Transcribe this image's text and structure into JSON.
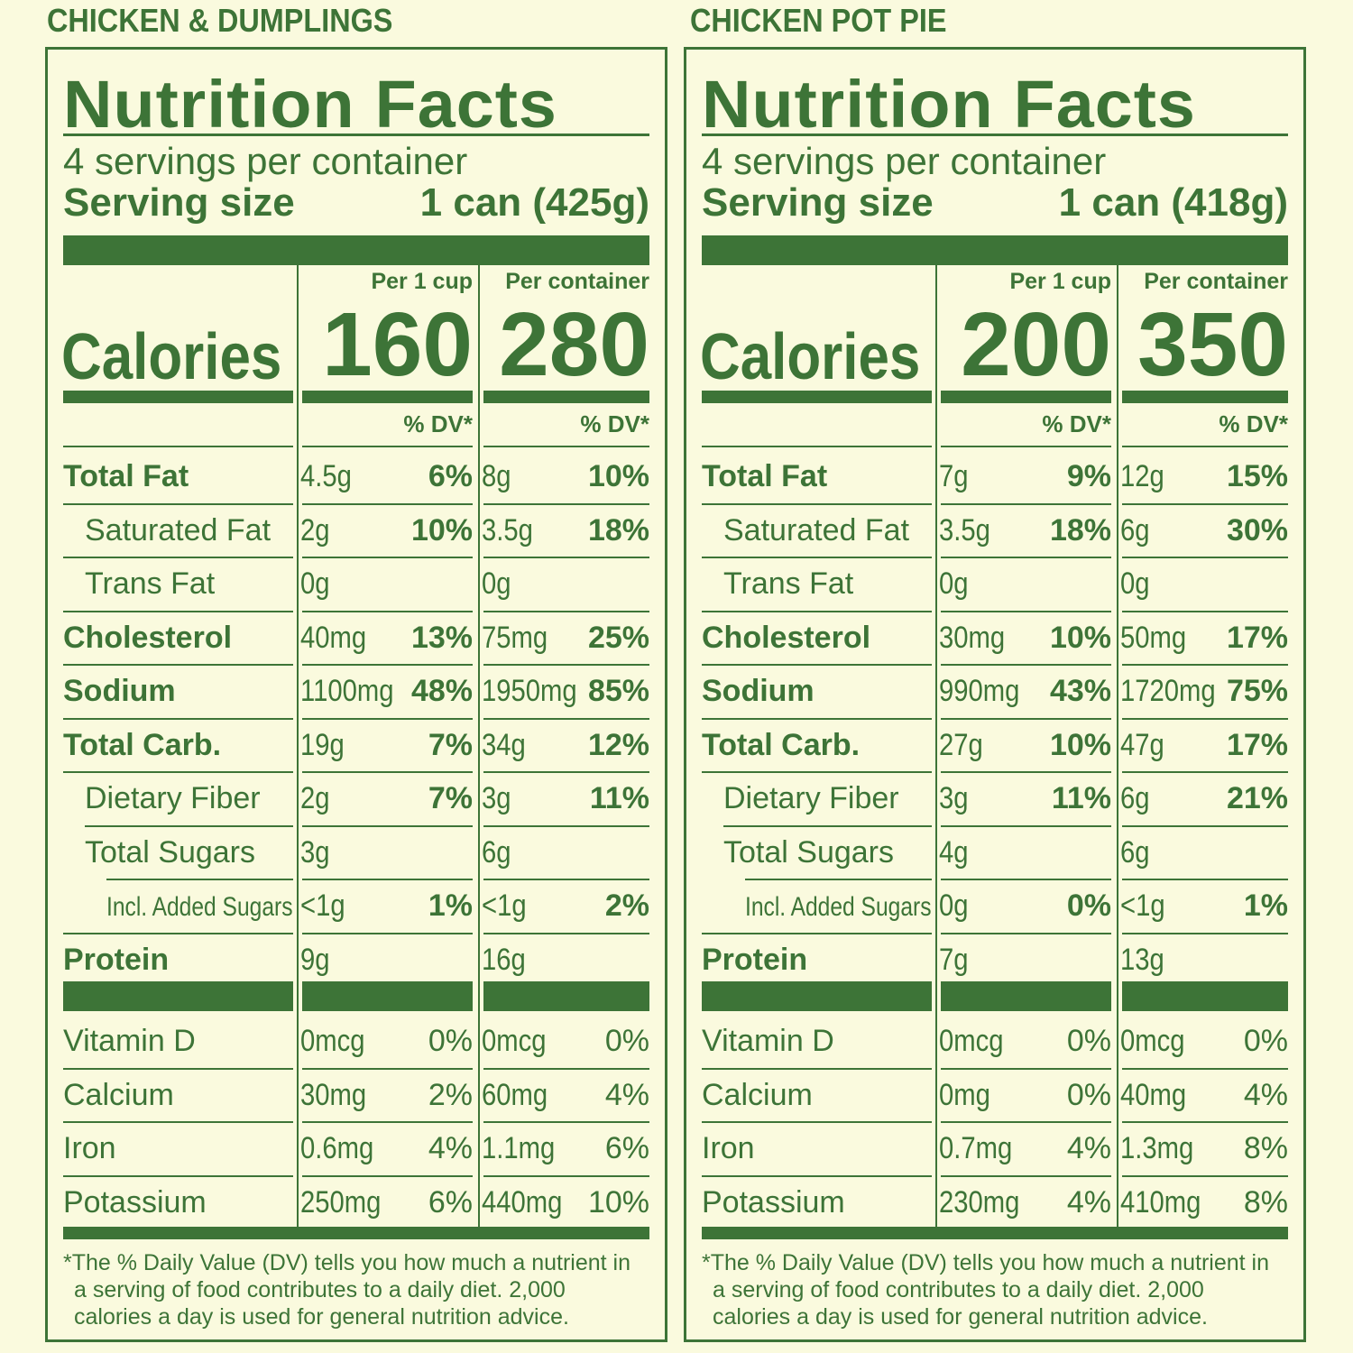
{
  "panels": [
    {
      "product_title": "CHICKEN & DUMPLINGS",
      "heading": "Nutrition Facts",
      "servings_per_container": "4 servings per container",
      "serving_size_label": "Serving size",
      "serving_size_value": "1 can (425g)",
      "col1_header": "Per 1 cup",
      "col2_header": "Per container",
      "calories_label": "Calories",
      "calories_col1": "160",
      "calories_col2": "280",
      "dv_header": "% DV*",
      "nutrients": [
        {
          "label": "Total Fat",
          "c1_amt": "4.5g",
          "c1_dv": "6%",
          "c2_amt": "8g",
          "c2_dv": "10%"
        },
        {
          "label": "Saturated Fat",
          "c1_amt": "2g",
          "c1_dv": "10%",
          "c2_amt": "3.5g",
          "c2_dv": "18%"
        },
        {
          "label": "Trans Fat",
          "c1_amt": "0g",
          "c1_dv": "",
          "c2_amt": "0g",
          "c2_dv": ""
        },
        {
          "label": "Cholesterol",
          "c1_amt": "40mg",
          "c1_dv": "13%",
          "c2_amt": "75mg",
          "c2_dv": "25%"
        },
        {
          "label": "Sodium",
          "c1_amt": "1100mg",
          "c1_dv": "48%",
          "c2_amt": "1950mg",
          "c2_dv": "85%"
        },
        {
          "label": "Total Carb.",
          "c1_amt": "19g",
          "c1_dv": "7%",
          "c2_amt": "34g",
          "c2_dv": "12%"
        },
        {
          "label": "Dietary Fiber",
          "c1_amt": "2g",
          "c1_dv": "7%",
          "c2_amt": "3g",
          "c2_dv": "11%"
        },
        {
          "label": "Total Sugars",
          "c1_amt": "3g",
          "c1_dv": "",
          "c2_amt": "6g",
          "c2_dv": ""
        },
        {
          "label": "Incl. Added Sugars",
          "c1_amt": "<1g",
          "c1_dv": "1%",
          "c2_amt": "<1g",
          "c2_dv": "2%"
        },
        {
          "label": "Protein",
          "c1_amt": "9g",
          "c1_dv": "",
          "c2_amt": "16g",
          "c2_dv": ""
        }
      ],
      "vitamins": [
        {
          "label": "Vitamin D",
          "c1_amt": "0mcg",
          "c1_dv": "0%",
          "c2_amt": "0mcg",
          "c2_dv": "0%"
        },
        {
          "label": "Calcium",
          "c1_amt": "30mg",
          "c1_dv": "2%",
          "c2_amt": "60mg",
          "c2_dv": "4%"
        },
        {
          "label": "Iron",
          "c1_amt": "0.6mg",
          "c1_dv": "4%",
          "c2_amt": "1.1mg",
          "c2_dv": "6%"
        },
        {
          "label": "Potassium",
          "c1_amt": "250mg",
          "c1_dv": "6%",
          "c2_amt": "440mg",
          "c2_dv": "10%"
        }
      ],
      "footnote_lines": [
        "*The % Daily Value (DV) tells you how much a nutrient in",
        "a serving of food contributes to a daily diet. 2,000",
        "calories a day is used for general nutrition advice."
      ]
    },
    {
      "product_title": "CHICKEN POT PIE",
      "heading": "Nutrition Facts",
      "servings_per_container": "4 servings per container",
      "serving_size_label": "Serving size",
      "serving_size_value": "1 can (418g)",
      "col1_header": "Per 1 cup",
      "col2_header": "Per container",
      "calories_label": "Calories",
      "calories_col1": "200",
      "calories_col2": "350",
      "dv_header": "% DV*",
      "nutrients": [
        {
          "label": "Total Fat",
          "c1_amt": "7g",
          "c1_dv": "9%",
          "c2_amt": "12g",
          "c2_dv": "15%"
        },
        {
          "label": "Saturated Fat",
          "c1_amt": "3.5g",
          "c1_dv": "18%",
          "c2_amt": "6g",
          "c2_dv": "30%"
        },
        {
          "label": "Trans Fat",
          "c1_amt": "0g",
          "c1_dv": "",
          "c2_amt": "0g",
          "c2_dv": ""
        },
        {
          "label": "Cholesterol",
          "c1_amt": "30mg",
          "c1_dv": "10%",
          "c2_amt": "50mg",
          "c2_dv": "17%"
        },
        {
          "label": "Sodium",
          "c1_amt": "990mg",
          "c1_dv": "43%",
          "c2_amt": "1720mg",
          "c2_dv": "75%"
        },
        {
          "label": "Total Carb.",
          "c1_amt": "27g",
          "c1_dv": "10%",
          "c2_amt": "47g",
          "c2_dv": "17%"
        },
        {
          "label": "Dietary Fiber",
          "c1_amt": "3g",
          "c1_dv": "11%",
          "c2_amt": "6g",
          "c2_dv": "21%"
        },
        {
          "label": "Total Sugars",
          "c1_amt": "4g",
          "c1_dv": "",
          "c2_amt": "6g",
          "c2_dv": ""
        },
        {
          "label": "Incl. Added Sugars",
          "c1_amt": "0g",
          "c1_dv": "0%",
          "c2_amt": "<1g",
          "c2_dv": "1%"
        },
        {
          "label": "Protein",
          "c1_amt": "7g",
          "c1_dv": "",
          "c2_amt": "13g",
          "c2_dv": ""
        }
      ],
      "vitamins": [
        {
          "label": "Vitamin D",
          "c1_amt": "0mcg",
          "c1_dv": "0%",
          "c2_amt": "0mcg",
          "c2_dv": "0%"
        },
        {
          "label": "Calcium",
          "c1_amt": "0mg",
          "c1_dv": "0%",
          "c2_amt": "40mg",
          "c2_dv": "4%"
        },
        {
          "label": "Iron",
          "c1_amt": "0.7mg",
          "c1_dv": "4%",
          "c2_amt": "1.3mg",
          "c2_dv": "8%"
        },
        {
          "label": "Potassium",
          "c1_amt": "230mg",
          "c1_dv": "4%",
          "c2_amt": "410mg",
          "c2_dv": "8%"
        }
      ],
      "footnote_lines": [
        "*The % Daily Value (DV) tells you how much a nutrient in",
        "a serving of food contributes to a daily diet. 2,000",
        "calories a day is used for general nutrition advice."
      ]
    }
  ],
  "colors": {
    "ink": "#3d7437",
    "background": "#fafade"
  }
}
